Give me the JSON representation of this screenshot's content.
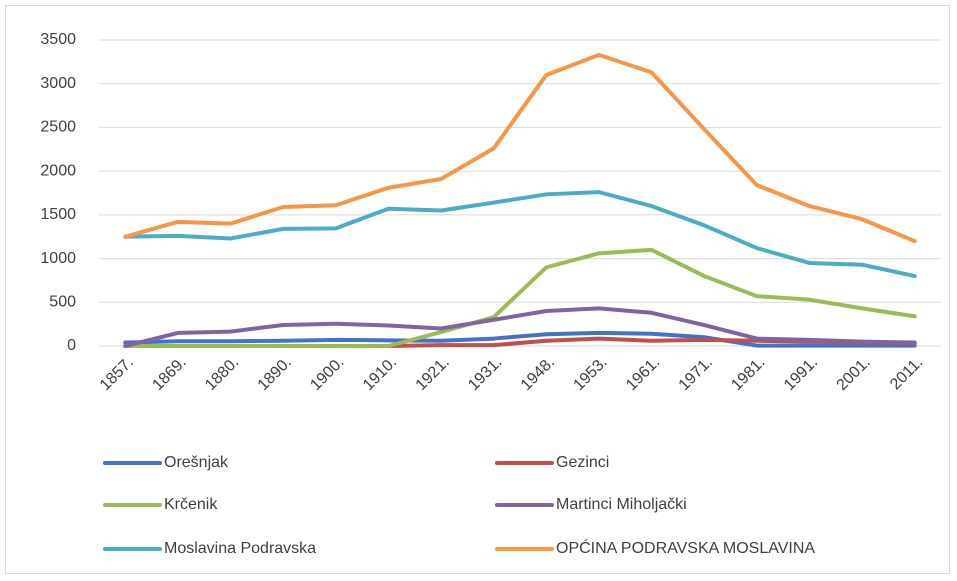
{
  "chart_data": {
    "type": "line",
    "categories": [
      "1857.",
      "1869.",
      "1880.",
      "1890.",
      "1900.",
      "1910.",
      "1921.",
      "1931.",
      "1948.",
      "1953.",
      "1961.",
      "1971.",
      "1981.",
      "1991.",
      "2001.",
      "2011."
    ],
    "series": [
      {
        "name": "Orešnjak",
        "color": "#4472c4",
        "values": [
          40,
          55,
          55,
          60,
          70,
          65,
          60,
          85,
          135,
          150,
          140,
          100,
          5,
          5,
          5,
          5
        ]
      },
      {
        "name": "Gezinci",
        "color": "#c0504d",
        "values": [
          0,
          0,
          0,
          0,
          0,
          0,
          10,
          10,
          60,
          85,
          60,
          70,
          60,
          50,
          40,
          30
        ]
      },
      {
        "name": "Krčenik",
        "color": "#9bbb59",
        "values": [
          0,
          0,
          0,
          0,
          0,
          0,
          160,
          330,
          900,
          1060,
          1100,
          800,
          570,
          530,
          430,
          340
        ]
      },
      {
        "name": "Martinci Miholjački",
        "color": "#8064a2",
        "values": [
          0,
          150,
          165,
          240,
          255,
          235,
          200,
          300,
          400,
          430,
          380,
          240,
          85,
          70,
          50,
          40
        ]
      },
      {
        "name": "Moslavina Podravska",
        "color": "#4bacc6",
        "values": [
          1250,
          1260,
          1230,
          1340,
          1345,
          1570,
          1550,
          1640,
          1735,
          1760,
          1600,
          1380,
          1120,
          950,
          930,
          800
        ]
      },
      {
        "name": "OPĆINA PODRAVSKA MOSLAVINA",
        "color": "#f79646",
        "values": [
          1250,
          1420,
          1400,
          1590,
          1610,
          1810,
          1910,
          2260,
          3100,
          3330,
          3130,
          2480,
          1840,
          1600,
          1450,
          1200
        ]
      }
    ],
    "ylim": [
      0,
      3500
    ],
    "yticks": [
      0,
      500,
      1000,
      1500,
      2000,
      2500,
      3000,
      3500
    ],
    "grid": true,
    "legend": "bottom"
  }
}
